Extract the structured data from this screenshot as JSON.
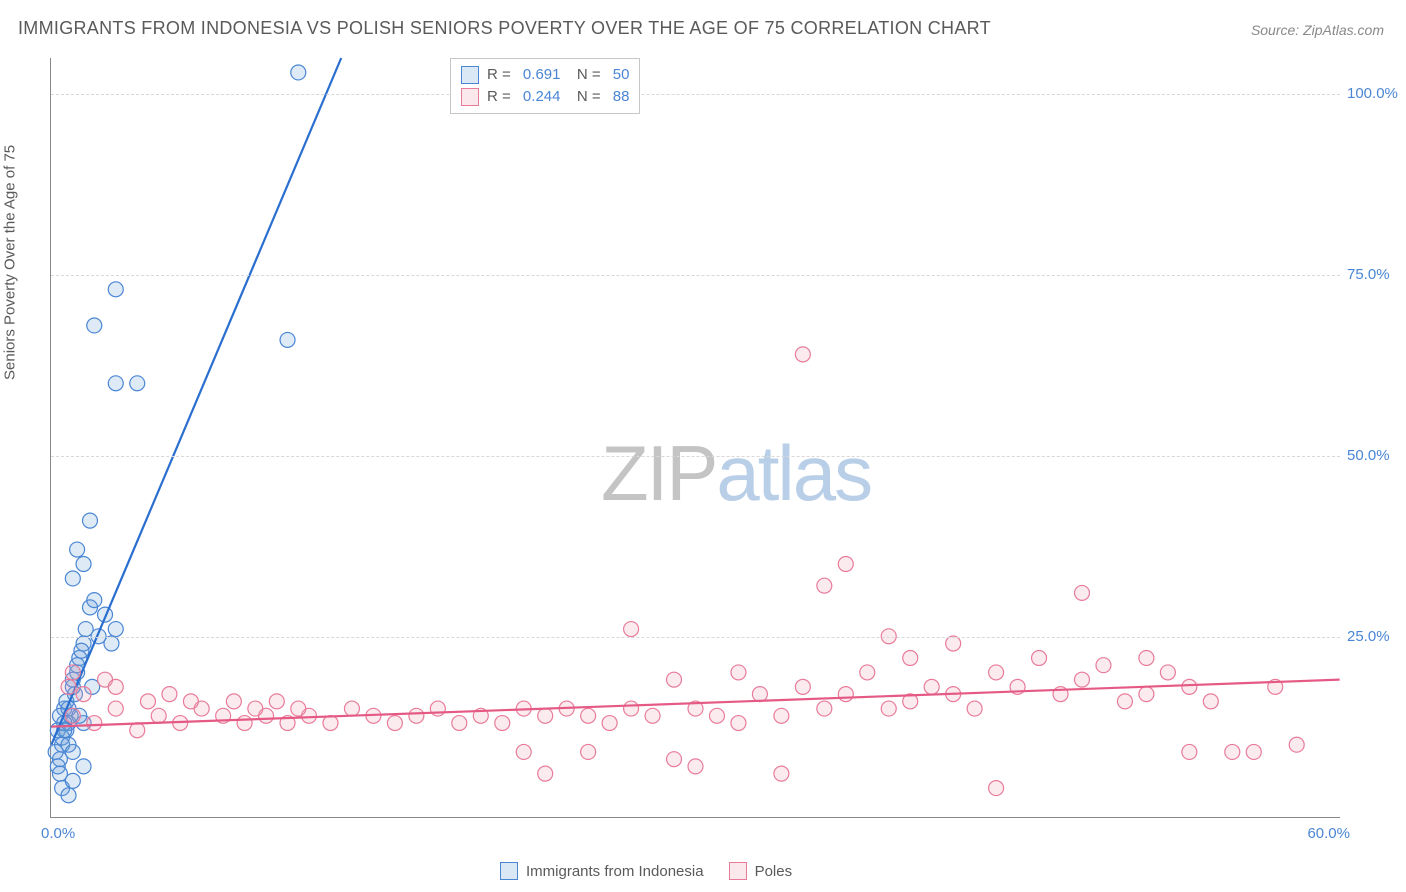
{
  "title": "IMMIGRANTS FROM INDONESIA VS POLISH SENIORS POVERTY OVER THE AGE OF 75 CORRELATION CHART",
  "source": "Source: ZipAtlas.com",
  "ylabel": "Seniors Poverty Over the Age of 75",
  "watermark": {
    "part1": "ZIP",
    "part2": "atlas"
  },
  "chart": {
    "type": "scatter-correlation",
    "background_color": "#ffffff",
    "grid_color": "#d8d8d8",
    "axis_color": "#888888",
    "tick_color": "#4a86d4",
    "label_color": "#5a5a5a",
    "tick_fontsize": 15,
    "label_fontsize": 15,
    "title_fontsize": 18,
    "xlim": [
      0,
      60
    ],
    "ylim": [
      0,
      105
    ],
    "yticks": [
      25,
      50,
      75,
      100
    ],
    "ytick_labels": [
      "25.0%",
      "50.0%",
      "75.0%",
      "100.0%"
    ],
    "xticks": [
      0,
      60
    ],
    "xtick_labels": [
      "0.0%",
      "60.0%"
    ],
    "marker_radius": 7.5,
    "marker_stroke_width": 1.2,
    "marker_fill_opacity": 0.22,
    "trendline_width": 2.2,
    "series": [
      {
        "name": "Immigrants from Indonesia",
        "color": "#6a9ed8",
        "stroke": "#4a86d4",
        "trend_color": "#2a6fd0",
        "R": "0.691",
        "N": "50",
        "trend": {
          "x1": 0,
          "y1": 10,
          "x2": 13.5,
          "y2": 105
        },
        "points": [
          [
            0.4,
            14
          ],
          [
            0.6,
            15
          ],
          [
            0.8,
            13
          ],
          [
            1.0,
            18
          ],
          [
            1.2,
            20
          ],
          [
            0.3,
            12
          ],
          [
            0.5,
            11
          ],
          [
            0.7,
            16
          ],
          [
            0.9,
            14
          ],
          [
            1.1,
            17
          ],
          [
            1.3,
            22
          ],
          [
            0.2,
            9
          ],
          [
            0.4,
            8
          ],
          [
            0.6,
            13
          ],
          [
            1.5,
            24
          ],
          [
            1.0,
            19
          ],
          [
            0.8,
            15
          ],
          [
            1.2,
            21
          ],
          [
            1.6,
            26
          ],
          [
            0.3,
            7
          ],
          [
            0.5,
            10
          ],
          [
            1.4,
            23
          ],
          [
            1.8,
            29
          ],
          [
            2.0,
            30
          ],
          [
            0.7,
            12
          ],
          [
            2.2,
            25
          ],
          [
            2.5,
            28
          ],
          [
            1.0,
            33
          ],
          [
            1.5,
            35
          ],
          [
            1.2,
            37
          ],
          [
            1.8,
            41
          ],
          [
            2.8,
            24
          ],
          [
            3.0,
            26
          ],
          [
            3.0,
            60
          ],
          [
            4.0,
            60
          ],
          [
            2.0,
            68
          ],
          [
            3.0,
            73
          ],
          [
            11.5,
            103
          ],
          [
            1.5,
            13
          ],
          [
            0.5,
            4
          ],
          [
            1.0,
            5
          ],
          [
            0.8,
            3
          ],
          [
            1.5,
            7
          ],
          [
            0.4,
            6
          ],
          [
            1.0,
            9
          ],
          [
            0.8,
            10
          ],
          [
            0.6,
            12
          ],
          [
            1.9,
            18
          ],
          [
            1.3,
            14
          ],
          [
            11.0,
            66
          ]
        ]
      },
      {
        "name": "Poles",
        "color": "#eea4b8",
        "stroke": "#e87b9a",
        "trend_color": "#e55a85",
        "R": "0.244",
        "N": "88",
        "trend": {
          "x1": 0,
          "y1": 12.5,
          "x2": 60,
          "y2": 19
        },
        "points": [
          [
            1,
            14
          ],
          [
            2,
            13
          ],
          [
            3,
            15
          ],
          [
            4,
            12
          ],
          [
            5,
            14
          ],
          [
            6,
            13
          ],
          [
            7,
            15
          ],
          [
            8,
            14
          ],
          [
            9,
            13
          ],
          [
            10,
            14
          ],
          [
            11,
            13
          ],
          [
            12,
            14
          ],
          [
            13,
            13
          ],
          [
            14,
            15
          ],
          [
            15,
            14
          ],
          [
            16,
            13
          ],
          [
            17,
            14
          ],
          [
            18,
            15
          ],
          [
            19,
            13
          ],
          [
            20,
            14
          ],
          [
            21,
            13
          ],
          [
            22,
            15
          ],
          [
            22,
            9
          ],
          [
            23,
            14
          ],
          [
            23,
            6
          ],
          [
            24,
            15
          ],
          [
            25,
            14
          ],
          [
            25,
            9
          ],
          [
            26,
            13
          ],
          [
            27,
            15
          ],
          [
            27,
            26
          ],
          [
            28,
            14
          ],
          [
            29,
            19
          ],
          [
            29,
            8
          ],
          [
            30,
            15
          ],
          [
            30,
            7
          ],
          [
            31,
            14
          ],
          [
            32,
            20
          ],
          [
            32,
            13
          ],
          [
            33,
            17
          ],
          [
            34,
            14
          ],
          [
            34,
            6
          ],
          [
            35,
            18
          ],
          [
            35,
            64
          ],
          [
            36,
            15
          ],
          [
            36,
            32
          ],
          [
            37,
            17
          ],
          [
            37,
            35
          ],
          [
            38,
            20
          ],
          [
            39,
            15
          ],
          [
            39,
            25
          ],
          [
            40,
            22
          ],
          [
            40,
            16
          ],
          [
            41,
            18
          ],
          [
            42,
            17
          ],
          [
            42,
            24
          ],
          [
            43,
            15
          ],
          [
            44,
            20
          ],
          [
            44,
            4
          ],
          [
            45,
            18
          ],
          [
            46,
            22
          ],
          [
            47,
            17
          ],
          [
            48,
            19
          ],
          [
            48,
            31
          ],
          [
            49,
            21
          ],
          [
            50,
            16
          ],
          [
            51,
            22
          ],
          [
            51,
            17
          ],
          [
            52,
            20
          ],
          [
            53,
            9
          ],
          [
            53,
            18
          ],
          [
            54,
            16
          ],
          [
            55,
            9
          ],
          [
            56,
            9
          ],
          [
            57,
            18
          ],
          [
            58,
            10
          ],
          [
            1.5,
            17
          ],
          [
            2.5,
            19
          ],
          [
            1,
            20
          ],
          [
            0.8,
            18
          ],
          [
            3,
            18
          ],
          [
            4.5,
            16
          ],
          [
            5.5,
            17
          ],
          [
            6.5,
            16
          ],
          [
            8.5,
            16
          ],
          [
            9.5,
            15
          ],
          [
            10.5,
            16
          ],
          [
            11.5,
            15
          ]
        ]
      }
    ],
    "legend_top": {
      "border_color": "#c7c7c7",
      "r_label": "R  =",
      "n_label": "N  ="
    },
    "legend_bottom": [
      {
        "label": "Immigrants from Indonesia",
        "series": 0
      },
      {
        "label": "Poles",
        "series": 1
      }
    ]
  }
}
